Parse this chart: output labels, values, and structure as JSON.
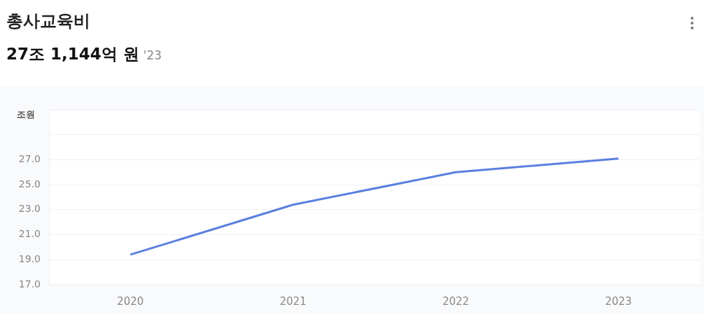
{
  "chart_data": {
    "type": "line",
    "title": "총사교육비",
    "subtitle": "27조 1,144억 원",
    "annotations": [
      "'23"
    ],
    "ylabel": "조원",
    "categories": [
      "2020",
      "2021",
      "2022",
      "2023"
    ],
    "series": [
      {
        "color": "#5b7fe0",
        "values": [
          19.4,
          23.4,
          26.0,
          27.1
        ]
      }
    ],
    "ylim": [
      17,
      31
    ],
    "yticks": [
      {
        "value": 17,
        "label": "17.0"
      },
      {
        "value": 19,
        "label": "19.0"
      },
      {
        "value": 21,
        "label": "21.0"
      },
      {
        "value": 23,
        "label": "23.0"
      },
      {
        "value": 25,
        "label": "25.0"
      },
      {
        "value": 27,
        "label": "27.0"
      },
      {
        "value": 29,
        "label": null
      },
      {
        "value": 31,
        "label": null
      }
    ],
    "grid": "y",
    "legend": false,
    "marker": "none",
    "line_style": "solid"
  }
}
